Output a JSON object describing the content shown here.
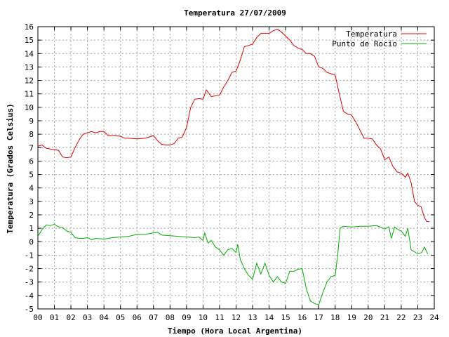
{
  "chart_data": {
    "type": "line",
    "title": "Temperatura 27/07/2009",
    "xlabel": "Tiempo (Hora Local Argentina)",
    "ylabel": "Temperatura (Grados Celsius)",
    "xlim": [
      0,
      24
    ],
    "ylim": [
      -5,
      16
    ],
    "grid": true,
    "legend_position": "top-right",
    "x_ticks": [
      "00",
      "01",
      "02",
      "03",
      "04",
      "05",
      "06",
      "07",
      "08",
      "09",
      "10",
      "11",
      "12",
      "13",
      "14",
      "15",
      "16",
      "17",
      "18",
      "19",
      "20",
      "21",
      "22",
      "23",
      "24"
    ],
    "y_ticks": [
      -5,
      -4,
      -3,
      -2,
      -1,
      0,
      1,
      2,
      3,
      4,
      5,
      6,
      7,
      8,
      9,
      10,
      11,
      12,
      13,
      14,
      15,
      16
    ],
    "series": [
      {
        "name": "Temperatura",
        "color": "#e00000",
        "points": [
          [
            0.0,
            7.1
          ],
          [
            0.25,
            7.2
          ],
          [
            0.5,
            6.95
          ],
          [
            0.75,
            6.9
          ],
          [
            1.0,
            6.85
          ],
          [
            1.25,
            6.8
          ],
          [
            1.5,
            6.3
          ],
          [
            1.75,
            6.25
          ],
          [
            2.0,
            6.3
          ],
          [
            2.25,
            7.0
          ],
          [
            2.5,
            7.6
          ],
          [
            2.75,
            8.0
          ],
          [
            3.0,
            8.1
          ],
          [
            3.25,
            8.2
          ],
          [
            3.5,
            8.1
          ],
          [
            3.75,
            8.2
          ],
          [
            4.0,
            8.2
          ],
          [
            4.25,
            7.9
          ],
          [
            4.5,
            7.9
          ],
          [
            5.0,
            7.85
          ],
          [
            5.25,
            7.7
          ],
          [
            5.5,
            7.7
          ],
          [
            6.0,
            7.65
          ],
          [
            6.5,
            7.7
          ],
          [
            7.0,
            7.9
          ],
          [
            7.25,
            7.5
          ],
          [
            7.5,
            7.25
          ],
          [
            7.75,
            7.2
          ],
          [
            8.0,
            7.2
          ],
          [
            8.25,
            7.3
          ],
          [
            8.5,
            7.7
          ],
          [
            8.75,
            7.8
          ],
          [
            9.0,
            8.5
          ],
          [
            9.25,
            10.0
          ],
          [
            9.5,
            10.6
          ],
          [
            9.75,
            10.65
          ],
          [
            10.0,
            10.6
          ],
          [
            10.2,
            11.3
          ],
          [
            10.5,
            10.8
          ],
          [
            11.0,
            10.9
          ],
          [
            11.25,
            11.5
          ],
          [
            11.5,
            12.0
          ],
          [
            11.75,
            12.6
          ],
          [
            12.0,
            12.7
          ],
          [
            12.25,
            13.5
          ],
          [
            12.5,
            14.5
          ],
          [
            12.75,
            14.6
          ],
          [
            13.0,
            14.7
          ],
          [
            13.25,
            15.2
          ],
          [
            13.5,
            15.5
          ],
          [
            14.0,
            15.5
          ],
          [
            14.25,
            15.7
          ],
          [
            14.5,
            15.8
          ],
          [
            14.75,
            15.6
          ],
          [
            15.0,
            15.3
          ],
          [
            15.25,
            15.0
          ],
          [
            15.5,
            14.6
          ],
          [
            15.75,
            14.4
          ],
          [
            16.0,
            14.3
          ],
          [
            16.25,
            14.0
          ],
          [
            16.5,
            14.0
          ],
          [
            16.75,
            13.8
          ],
          [
            17.0,
            13.0
          ],
          [
            17.25,
            12.9
          ],
          [
            17.5,
            12.6
          ],
          [
            17.75,
            12.5
          ],
          [
            18.0,
            12.4
          ],
          [
            18.25,
            11.0
          ],
          [
            18.5,
            9.7
          ],
          [
            18.75,
            9.5
          ],
          [
            19.0,
            9.4
          ],
          [
            19.25,
            8.9
          ],
          [
            19.5,
            8.3
          ],
          [
            19.75,
            7.7
          ],
          [
            20.0,
            7.7
          ],
          [
            20.25,
            7.65
          ],
          [
            20.5,
            7.2
          ],
          [
            20.75,
            6.9
          ],
          [
            21.0,
            6.1
          ],
          [
            21.25,
            6.3
          ],
          [
            21.5,
            5.6
          ],
          [
            21.75,
            5.2
          ],
          [
            22.0,
            5.1
          ],
          [
            22.25,
            4.8
          ],
          [
            22.4,
            5.1
          ],
          [
            22.6,
            4.4
          ],
          [
            22.8,
            3.0
          ],
          [
            23.0,
            2.7
          ],
          [
            23.2,
            2.6
          ],
          [
            23.4,
            1.8
          ],
          [
            23.55,
            1.5
          ],
          [
            23.7,
            1.5
          ]
        ]
      },
      {
        "name": "Punto de Rocío",
        "color": "#00b000",
        "points": [
          [
            0.0,
            0.4
          ],
          [
            0.25,
            0.9
          ],
          [
            0.5,
            1.25
          ],
          [
            0.75,
            1.2
          ],
          [
            1.0,
            1.3
          ],
          [
            1.25,
            1.1
          ],
          [
            1.5,
            1.05
          ],
          [
            1.75,
            0.8
          ],
          [
            2.0,
            0.7
          ],
          [
            2.25,
            0.3
          ],
          [
            2.5,
            0.25
          ],
          [
            2.75,
            0.25
          ],
          [
            3.0,
            0.3
          ],
          [
            3.25,
            0.15
          ],
          [
            3.5,
            0.25
          ],
          [
            4.0,
            0.2
          ],
          [
            4.5,
            0.3
          ],
          [
            5.0,
            0.35
          ],
          [
            5.5,
            0.4
          ],
          [
            6.0,
            0.55
          ],
          [
            6.5,
            0.55
          ],
          [
            7.0,
            0.65
          ],
          [
            7.25,
            0.7
          ],
          [
            7.5,
            0.5
          ],
          [
            8.0,
            0.45
          ],
          [
            8.5,
            0.4
          ],
          [
            9.0,
            0.35
          ],
          [
            9.5,
            0.3
          ],
          [
            9.75,
            0.35
          ],
          [
            10.0,
            0.1
          ],
          [
            10.1,
            0.65
          ],
          [
            10.3,
            -0.1
          ],
          [
            10.5,
            0.1
          ],
          [
            10.75,
            -0.4
          ],
          [
            11.0,
            -0.6
          ],
          [
            11.25,
            -1.0
          ],
          [
            11.5,
            -0.6
          ],
          [
            11.75,
            -0.5
          ],
          [
            12.0,
            -0.8
          ],
          [
            12.1,
            -0.2
          ],
          [
            12.25,
            -1.3
          ],
          [
            12.5,
            -2.0
          ],
          [
            12.75,
            -2.5
          ],
          [
            13.0,
            -2.8
          ],
          [
            13.25,
            -1.6
          ],
          [
            13.5,
            -2.4
          ],
          [
            13.75,
            -1.6
          ],
          [
            14.0,
            -2.5
          ],
          [
            14.25,
            -3.0
          ],
          [
            14.5,
            -2.6
          ],
          [
            14.75,
            -3.0
          ],
          [
            15.0,
            -3.1
          ],
          [
            15.25,
            -2.2
          ],
          [
            15.5,
            -2.2
          ],
          [
            15.75,
            -2.05
          ],
          [
            16.0,
            -2.0
          ],
          [
            16.25,
            -3.5
          ],
          [
            16.5,
            -4.4
          ],
          [
            16.75,
            -4.6
          ],
          [
            17.0,
            -4.7
          ],
          [
            17.25,
            -3.8
          ],
          [
            17.5,
            -3.0
          ],
          [
            17.75,
            -2.6
          ],
          [
            18.0,
            -2.5
          ],
          [
            18.15,
            -1.0
          ],
          [
            18.3,
            1.0
          ],
          [
            18.5,
            1.15
          ],
          [
            19.0,
            1.1
          ],
          [
            19.5,
            1.15
          ],
          [
            20.0,
            1.15
          ],
          [
            20.5,
            1.2
          ],
          [
            21.0,
            0.95
          ],
          [
            21.25,
            1.1
          ],
          [
            21.4,
            0.25
          ],
          [
            21.6,
            1.1
          ],
          [
            21.8,
            0.9
          ],
          [
            22.0,
            0.8
          ],
          [
            22.25,
            0.4
          ],
          [
            22.4,
            1.0
          ],
          [
            22.6,
            -0.6
          ],
          [
            23.0,
            -0.9
          ],
          [
            23.25,
            -0.8
          ],
          [
            23.4,
            -0.4
          ],
          [
            23.6,
            -0.9
          ]
        ]
      }
    ]
  }
}
